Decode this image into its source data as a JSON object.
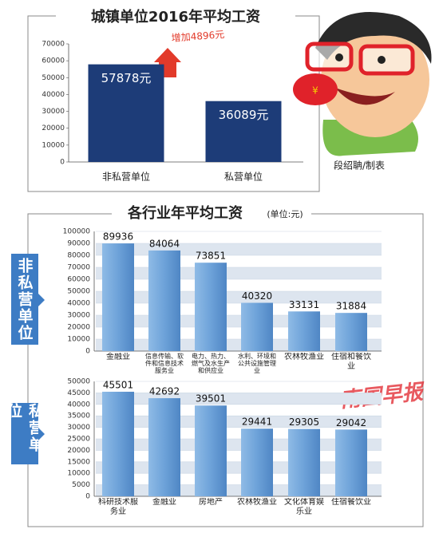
{
  "chart_data": [
    {
      "type": "bar",
      "title": "城镇单位2016年平均工资",
      "categories": [
        "非私营单位",
        "私营单位"
      ],
      "values": [
        57878,
        36089
      ],
      "value_labels": [
        "57878元",
        "36089元"
      ],
      "color": "#1d3c78",
      "ylim": [
        0,
        70000
      ],
      "yticks": [
        0,
        10000,
        20000,
        30000,
        40000,
        50000,
        60000,
        70000
      ],
      "grid": false,
      "annotation": "增加4896元",
      "credit": "段绍聃/制表"
    },
    {
      "type": "bar",
      "title": "各行业年平均工资",
      "unit": "(单位:元)",
      "group_label": "非私营单位",
      "categories": [
        "金融业",
        "信息传输、软件和信息技术服务业",
        "电力、热力、燃气及水生产和供应业",
        "水利、环境和公共设施管理业",
        "农林牧渔业",
        "住宿和餐饮业"
      ],
      "values": [
        89936,
        84064,
        73851,
        40320,
        33131,
        31884
      ],
      "color": "#6da2d9",
      "ylim": [
        0,
        100000
      ],
      "yticks": [
        0,
        10000,
        20000,
        30000,
        40000,
        50000,
        60000,
        70000,
        80000,
        90000,
        100000
      ],
      "grid": true
    },
    {
      "type": "bar",
      "group_label": "私营单位",
      "categories": [
        "科研技术服务业",
        "金融业",
        "房地产",
        "农林牧渔业",
        "文化体育娱乐业",
        "住宿餐饮业"
      ],
      "values": [
        45501,
        42692,
        39501,
        29441,
        29305,
        29042
      ],
      "color": "#6da2d9",
      "ylim": [
        0,
        50000
      ],
      "yticks": [
        0,
        5000,
        10000,
        15000,
        20000,
        25000,
        30000,
        35000,
        40000,
        45000,
        50000
      ],
      "grid": true
    }
  ],
  "watermark": "南国早报"
}
